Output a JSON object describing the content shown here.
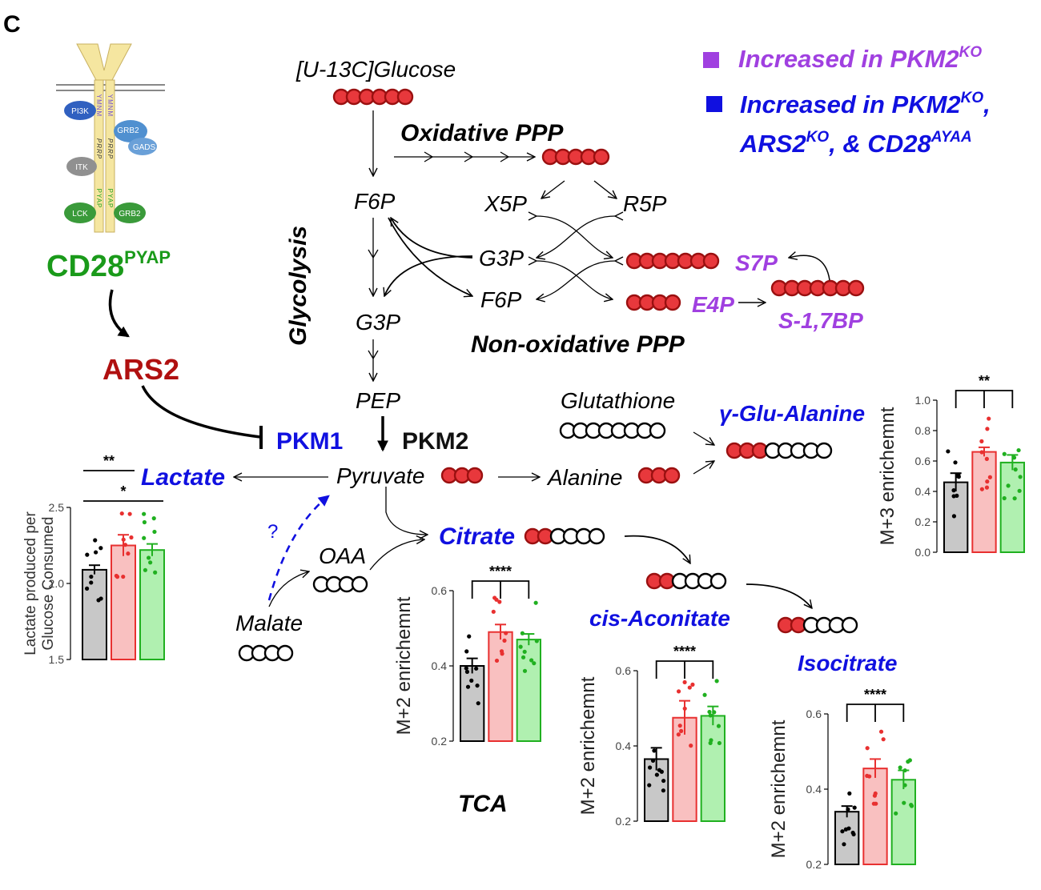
{
  "panel_label": "C",
  "legend": {
    "item1": "Increased in PKM2",
    "item1_sup": "KO",
    "item2_line1": "Increased in PKM2",
    "item2_line1_sup": "KO",
    "item2_line1_tail": ",",
    "item2_line2_a": "ARS2",
    "item2_line2_a_sup": "KO",
    "item2_line2_b": ", & CD28",
    "item2_line2_b_sup": "AYAA",
    "color_purple": "#a040e0",
    "color_blue": "#1010e0"
  },
  "receptor": {
    "pi3k": "PI3K",
    "grb2_top": "GRB2",
    "gads": "GADS",
    "itk": "ITK",
    "lck": "LCK",
    "grb2_bottom": "GRB2",
    "motif_ymnm": "YMNM",
    "motif_prrp": "PRRP",
    "motif_pyap": "PYAP"
  },
  "signaling": {
    "cd28": "CD28",
    "cd28_sup": "PYAP",
    "ars2": "ARS2",
    "pkm1": "PKM1",
    "pkm2": "PKM2",
    "question": "?",
    "green": "#1a9a1a",
    "red": "#b01010"
  },
  "metabolites": {
    "glucose": "[U-13C]Glucose",
    "oxidative_ppp": "Oxidative PPP",
    "non_oxidative_ppp": "Non-oxidative PPP",
    "glycolysis": "Glycolysis",
    "f6p": "F6P",
    "g3p": "G3P",
    "pep": "PEP",
    "pyruvate": "Pyruvate",
    "x5p": "X5P",
    "r5p": "R5P",
    "g3p_ppp": "G3P",
    "f6p_ppp": "F6P",
    "s7p": "S7P",
    "e4p": "E4P",
    "s17bp": "S-1,7BP",
    "lactate": "Lactate",
    "glutathione": "Glutathione",
    "alanine": "Alanine",
    "gamma_glu_alanine": "γ-Glu-Alanine",
    "citrate": "Citrate",
    "oaa": "OAA",
    "malate": "Malate",
    "cis_aconitate": "cis-Aconitate",
    "isocitrate": "Isocitrate",
    "tca": "TCA"
  },
  "carbon_colors": {
    "labeled": "#e8383c",
    "labeled_edge": "#9a1010",
    "unlabeled": "#ffffff",
    "unlabeled_edge": "#000000"
  },
  "bar_colors": {
    "ctrl": "#c8c8c8",
    "pkm2ko": "#f9c0c0",
    "pkm2ko_edge": "#e83030",
    "other": "#b0f0b0",
    "other_edge": "#20b020"
  },
  "chart_data": [
    {
      "type": "bar",
      "id": "lactate",
      "ylabel": "Lactate produced per Glucose Consumed",
      "ylabel_line1": "Lactate produced per",
      "ylabel_line2": "Glucose Consumed",
      "ylim": [
        1.5,
        2.5
      ],
      "yticks": [
        "1.5",
        "2.0",
        "2.5"
      ],
      "values": [
        2.09,
        2.25,
        2.22
      ],
      "errors": [
        0.03,
        0.07,
        0.04
      ],
      "significance": [
        {
          "from": 0,
          "to": 1,
          "label": "**"
        },
        {
          "from": 0,
          "to": 2,
          "label": "*"
        }
      ]
    },
    {
      "type": "bar",
      "id": "gamma_glu_alanine",
      "ylabel": "M+3 enrichemnt",
      "ylim": [
        0.0,
        1.0
      ],
      "yticks": [
        "0.0",
        "0.2",
        "0.4",
        "0.6",
        "0.8",
        "1.0"
      ],
      "values": [
        0.46,
        0.66,
        0.59
      ],
      "errors": [
        0.06,
        0.03,
        0.05
      ],
      "significance": [
        {
          "group": true,
          "label": "**"
        }
      ]
    },
    {
      "type": "bar",
      "id": "citrate",
      "ylabel": "M+2 enrichemnt",
      "ylim": [
        0.2,
        0.6
      ],
      "yticks": [
        "0.2",
        "0.4",
        "0.6"
      ],
      "values": [
        0.4,
        0.49,
        0.47
      ],
      "errors": [
        0.02,
        0.02,
        0.015
      ],
      "significance": [
        {
          "group": true,
          "label": "****"
        }
      ]
    },
    {
      "type": "bar",
      "id": "cis_aconitate",
      "ylabel": "M+2 enrichemnt",
      "ylim": [
        0.2,
        0.6
      ],
      "yticks": [
        "0.2",
        "0.4",
        "0.6"
      ],
      "values": [
        0.365,
        0.475,
        0.48
      ],
      "errors": [
        0.03,
        0.045,
        0.025
      ],
      "significance": [
        {
          "group": true,
          "label": "****"
        }
      ]
    },
    {
      "type": "bar",
      "id": "isocitrate",
      "ylabel": "M+2 enrichemnt",
      "ylim": [
        0.2,
        0.6
      ],
      "yticks": [
        "0.2",
        "0.4",
        "0.6"
      ],
      "values": [
        0.34,
        0.455,
        0.425
      ],
      "errors": [
        0.015,
        0.025,
        0.025
      ],
      "significance": [
        {
          "group": true,
          "label": "****"
        }
      ]
    }
  ]
}
